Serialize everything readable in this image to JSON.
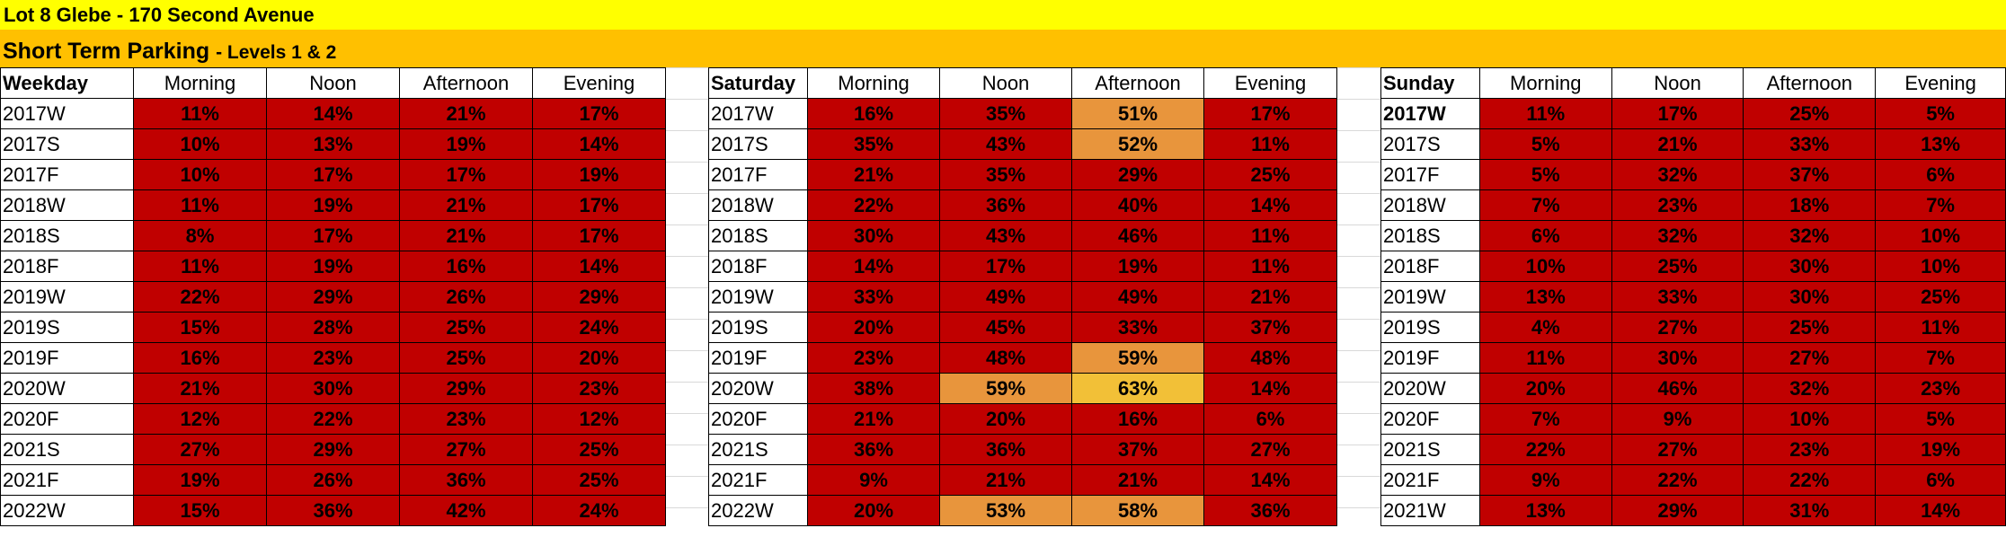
{
  "title": "Lot 8 Glebe - 170 Second Avenue",
  "subtitle": "Short Term Parking",
  "subtitle_small": "- Levels 1 & 2",
  "colors": {
    "red": "#c00000",
    "orange": "#e8953c",
    "yellow": "#f2c037",
    "title_bg": "#ffff00",
    "subtitle_bg": "#ffc000"
  },
  "columns": [
    "Morning",
    "Noon",
    "Afternoon",
    "Evening"
  ],
  "blocks": [
    {
      "header": "Weekday",
      "rows": [
        {
          "label": "2017W",
          "values": [
            "11%",
            "14%",
            "21%",
            "17%"
          ],
          "colors": [
            "red",
            "red",
            "red",
            "red"
          ]
        },
        {
          "label": "2017S",
          "values": [
            "10%",
            "13%",
            "19%",
            "14%"
          ],
          "colors": [
            "red",
            "red",
            "red",
            "red"
          ]
        },
        {
          "label": "2017F",
          "values": [
            "10%",
            "17%",
            "17%",
            "19%"
          ],
          "colors": [
            "red",
            "red",
            "red",
            "red"
          ]
        },
        {
          "label": "2018W",
          "values": [
            "11%",
            "19%",
            "21%",
            "17%"
          ],
          "colors": [
            "red",
            "red",
            "red",
            "red"
          ]
        },
        {
          "label": "2018S",
          "values": [
            "8%",
            "17%",
            "21%",
            "17%"
          ],
          "colors": [
            "red",
            "red",
            "red",
            "red"
          ]
        },
        {
          "label": "2018F",
          "values": [
            "11%",
            "19%",
            "16%",
            "14%"
          ],
          "colors": [
            "red",
            "red",
            "red",
            "red"
          ]
        },
        {
          "label": "2019W",
          "values": [
            "22%",
            "29%",
            "26%",
            "29%"
          ],
          "colors": [
            "red",
            "red",
            "red",
            "red"
          ]
        },
        {
          "label": "2019S",
          "values": [
            "15%",
            "28%",
            "25%",
            "24%"
          ],
          "colors": [
            "red",
            "red",
            "red",
            "red"
          ]
        },
        {
          "label": "2019F",
          "values": [
            "16%",
            "23%",
            "25%",
            "20%"
          ],
          "colors": [
            "red",
            "red",
            "red",
            "red"
          ]
        },
        {
          "label": "2020W",
          "values": [
            "21%",
            "30%",
            "29%",
            "23%"
          ],
          "colors": [
            "red",
            "red",
            "red",
            "red"
          ]
        },
        {
          "label": "2020F",
          "values": [
            "12%",
            "22%",
            "23%",
            "12%"
          ],
          "colors": [
            "red",
            "red",
            "red",
            "red"
          ]
        },
        {
          "label": "2021S",
          "values": [
            "27%",
            "29%",
            "27%",
            "25%"
          ],
          "colors": [
            "red",
            "red",
            "red",
            "red"
          ]
        },
        {
          "label": "2021F",
          "values": [
            "19%",
            "26%",
            "36%",
            "25%"
          ],
          "colors": [
            "red",
            "red",
            "red",
            "red"
          ]
        },
        {
          "label": "2022W",
          "values": [
            "15%",
            "36%",
            "42%",
            "24%"
          ],
          "colors": [
            "red",
            "red",
            "red",
            "red"
          ]
        }
      ]
    },
    {
      "header": "Saturday",
      "rows": [
        {
          "label": "2017W",
          "values": [
            "16%",
            "35%",
            "51%",
            "17%"
          ],
          "colors": [
            "red",
            "red",
            "orange",
            "red"
          ]
        },
        {
          "label": "2017S",
          "values": [
            "35%",
            "43%",
            "52%",
            "11%"
          ],
          "colors": [
            "red",
            "red",
            "orange",
            "red"
          ]
        },
        {
          "label": "2017F",
          "values": [
            "21%",
            "35%",
            "29%",
            "25%"
          ],
          "colors": [
            "red",
            "red",
            "red",
            "red"
          ]
        },
        {
          "label": "2018W",
          "values": [
            "22%",
            "36%",
            "40%",
            "14%"
          ],
          "colors": [
            "red",
            "red",
            "red",
            "red"
          ]
        },
        {
          "label": "2018S",
          "values": [
            "30%",
            "43%",
            "46%",
            "11%"
          ],
          "colors": [
            "red",
            "red",
            "red",
            "red"
          ]
        },
        {
          "label": "2018F",
          "values": [
            "14%",
            "17%",
            "19%",
            "11%"
          ],
          "colors": [
            "red",
            "red",
            "red",
            "red"
          ]
        },
        {
          "label": "2019W",
          "values": [
            "33%",
            "49%",
            "49%",
            "21%"
          ],
          "colors": [
            "red",
            "red",
            "red",
            "red"
          ]
        },
        {
          "label": "2019S",
          "values": [
            "20%",
            "45%",
            "33%",
            "37%"
          ],
          "colors": [
            "red",
            "red",
            "red",
            "red"
          ]
        },
        {
          "label": "2019F",
          "values": [
            "23%",
            "48%",
            "59%",
            "48%"
          ],
          "colors": [
            "red",
            "red",
            "orange",
            "red"
          ]
        },
        {
          "label": "2020W",
          "values": [
            "38%",
            "59%",
            "63%",
            "14%"
          ],
          "colors": [
            "red",
            "orange",
            "yellow",
            "red"
          ]
        },
        {
          "label": "2020F",
          "values": [
            "21%",
            "20%",
            "16%",
            "6%"
          ],
          "colors": [
            "red",
            "red",
            "red",
            "red"
          ]
        },
        {
          "label": "2021S",
          "values": [
            "36%",
            "36%",
            "37%",
            "27%"
          ],
          "colors": [
            "red",
            "red",
            "red",
            "red"
          ]
        },
        {
          "label": "2021F",
          "values": [
            "9%",
            "21%",
            "21%",
            "14%"
          ],
          "colors": [
            "red",
            "red",
            "red",
            "red"
          ]
        },
        {
          "label": "2022W",
          "values": [
            "20%",
            "53%",
            "58%",
            "36%"
          ],
          "colors": [
            "red",
            "orange",
            "orange",
            "red"
          ]
        }
      ]
    },
    {
      "header": "Sunday",
      "rows": [
        {
          "label": "2017W",
          "bold": true,
          "values": [
            "11%",
            "17%",
            "25%",
            "5%"
          ],
          "colors": [
            "red",
            "red",
            "red",
            "red"
          ]
        },
        {
          "label": "2017S",
          "values": [
            "5%",
            "21%",
            "33%",
            "13%"
          ],
          "colors": [
            "red",
            "red",
            "red",
            "red"
          ]
        },
        {
          "label": "2017F",
          "values": [
            "5%",
            "32%",
            "37%",
            "6%"
          ],
          "colors": [
            "red",
            "red",
            "red",
            "red"
          ]
        },
        {
          "label": "2018W",
          "values": [
            "7%",
            "23%",
            "18%",
            "7%"
          ],
          "colors": [
            "red",
            "red",
            "red",
            "red"
          ]
        },
        {
          "label": "2018S",
          "values": [
            "6%",
            "32%",
            "32%",
            "10%"
          ],
          "colors": [
            "red",
            "red",
            "red",
            "red"
          ]
        },
        {
          "label": "2018F",
          "values": [
            "10%",
            "25%",
            "30%",
            "10%"
          ],
          "colors": [
            "red",
            "red",
            "red",
            "red"
          ]
        },
        {
          "label": "2019W",
          "values": [
            "13%",
            "33%",
            "30%",
            "25%"
          ],
          "colors": [
            "red",
            "red",
            "red",
            "red"
          ]
        },
        {
          "label": "2019S",
          "values": [
            "4%",
            "27%",
            "25%",
            "11%"
          ],
          "colors": [
            "red",
            "red",
            "red",
            "red"
          ]
        },
        {
          "label": "2019F",
          "values": [
            "11%",
            "30%",
            "27%",
            "7%"
          ],
          "colors": [
            "red",
            "red",
            "red",
            "red"
          ]
        },
        {
          "label": "2020W",
          "values": [
            "20%",
            "46%",
            "32%",
            "23%"
          ],
          "colors": [
            "red",
            "red",
            "red",
            "red"
          ]
        },
        {
          "label": "2020F",
          "values": [
            "7%",
            "9%",
            "10%",
            "5%"
          ],
          "colors": [
            "red",
            "red",
            "red",
            "red"
          ]
        },
        {
          "label": "2021S",
          "values": [
            "22%",
            "27%",
            "23%",
            "19%"
          ],
          "colors": [
            "red",
            "red",
            "red",
            "red"
          ]
        },
        {
          "label": "2021F",
          "values": [
            "9%",
            "22%",
            "22%",
            "6%"
          ],
          "colors": [
            "red",
            "red",
            "red",
            "red"
          ]
        },
        {
          "label": "2021W",
          "values": [
            "13%",
            "29%",
            "31%",
            "14%"
          ],
          "colors": [
            "red",
            "red",
            "red",
            "red"
          ]
        }
      ]
    }
  ]
}
